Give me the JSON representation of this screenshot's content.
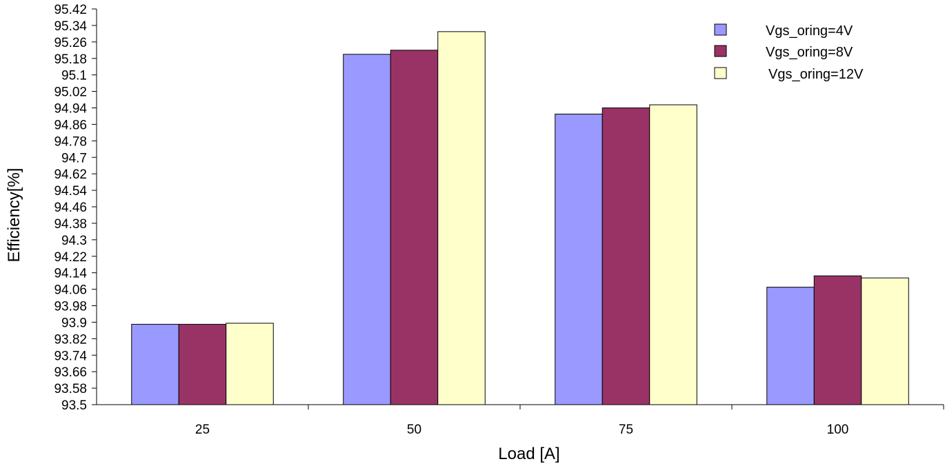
{
  "chart_data": {
    "type": "bar",
    "title": "",
    "xlabel": "Load [A]",
    "ylabel": "Efficiency[%]",
    "categories": [
      "25",
      "50",
      "75",
      "100"
    ],
    "ylim": [
      93.5,
      95.42
    ],
    "yticks": [
      "93.5",
      "93.58",
      "93.66",
      "93.74",
      "93.82",
      "93.9",
      "93.98",
      "94.06",
      "94.14",
      "94.22",
      "94.3",
      "94.38",
      "94.46",
      "94.54",
      "94.62",
      "94.7",
      "94.78",
      "94.86",
      "94.94",
      "95.02",
      "95.1",
      "95.18",
      "95.26",
      "95.34",
      "95.42"
    ],
    "grid": false,
    "legend_position": "top-right",
    "series": [
      {
        "name": "Vgs_oring=4V",
        "color": "#9999ff",
        "values": [
          93.89,
          95.2,
          94.91,
          94.07
        ]
      },
      {
        "name": "Vgs_oring=8V",
        "color": "#993366",
        "values": [
          93.89,
          95.22,
          94.94,
          94.125
        ]
      },
      {
        "name": "Vgs_oring=12V",
        "color": "#ffffcc",
        "values": [
          93.895,
          95.31,
          94.955,
          94.115
        ]
      }
    ]
  }
}
